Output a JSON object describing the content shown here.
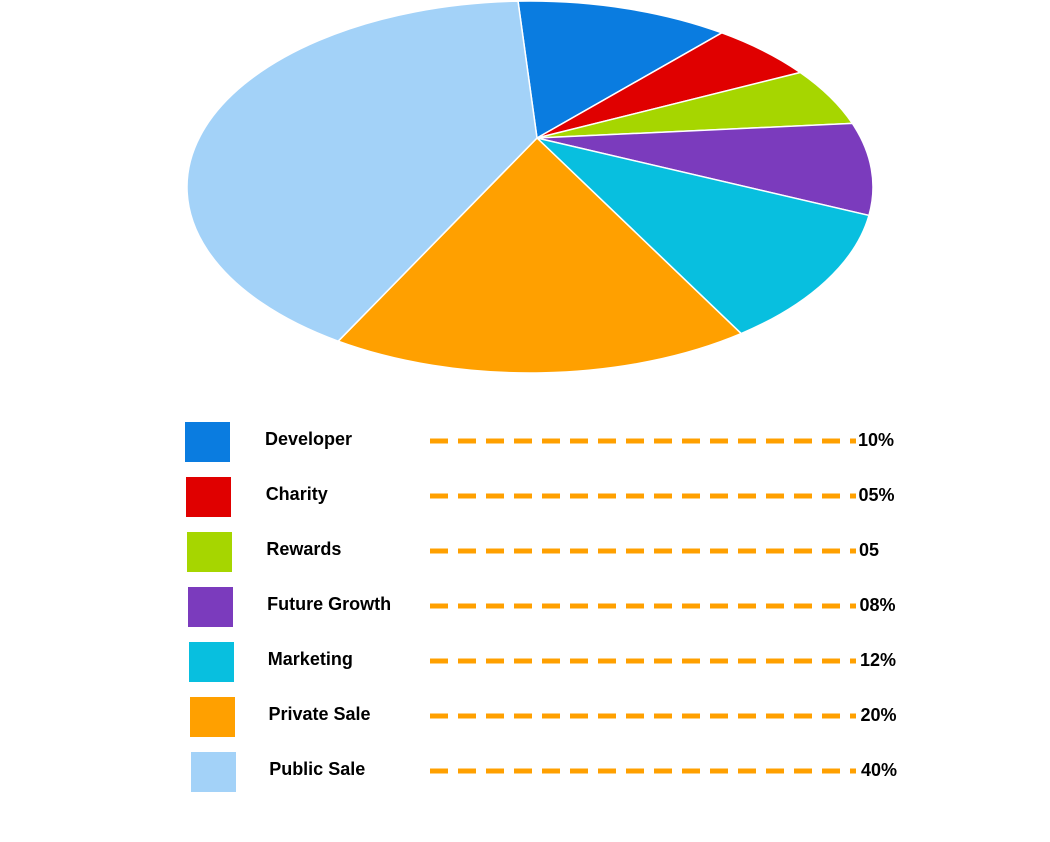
{
  "chart_data": {
    "type": "pie",
    "categories": [
      "Developer",
      "Charity",
      "Rewards",
      "Future Growth",
      "Marketing",
      "Private Sale",
      "Public Sale"
    ],
    "values": [
      10,
      5,
      5,
      8,
      12,
      20,
      40
    ],
    "value_labels": [
      "10%",
      "05%",
      "05",
      "08%",
      "12%",
      "20%",
      "40%"
    ],
    "colors": [
      "#0a7ce0",
      "#e00000",
      "#a6d600",
      "#7b3bbd",
      "#08bfdf",
      "#ffa000",
      "#a3d2f8"
    ]
  }
}
